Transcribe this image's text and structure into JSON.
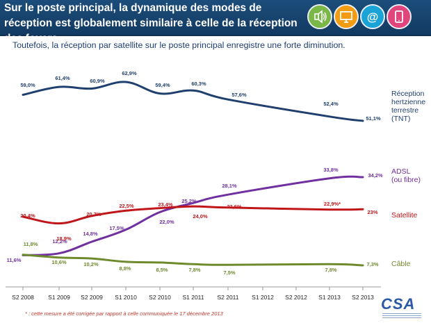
{
  "header": {
    "title": "Sur le poste principal, la dynamique des modes de réception est globalement similaire à celle de la réception des foyers",
    "icons": [
      {
        "name": "speaker-icon",
        "color": "#7ab648"
      },
      {
        "name": "tv-icon",
        "color": "#f39c12"
      },
      {
        "name": "at-icon",
        "color": "#1aa3d6"
      },
      {
        "name": "tablet-icon",
        "color": "#e0457b"
      }
    ]
  },
  "subtitle": "Toutefois, la réception par satellite sur le poste principal enregistre une forte diminution.",
  "footnote": "* : cette mesure a été corrigée par rapport à celle communiquée le 17 décembre 2013",
  "logo": {
    "text": "CSA"
  },
  "chart_data": {
    "type": "line",
    "categories": [
      "S2 2008",
      "S1 2009",
      "S2 2009",
      "S1 2010",
      "S2 2010",
      "S1 2011",
      "S2 2011",
      "S1 2012",
      "S2 2012",
      "S1 2013",
      "S2 2013"
    ],
    "series": [
      {
        "name": "Réception hertzienne terrestre (TNT)",
        "color": "#1f3f6e",
        "values": [
          59.0,
          61.4,
          60.9,
          62.9,
          59.4,
          60.3,
          57.6,
          null,
          null,
          52.4,
          51.1
        ],
        "labels": [
          "59,0%",
          "61,4%",
          "60,9%",
          "62,9%",
          "59,4%",
          "60,3%",
          "57,6%",
          "",
          "",
          "52,4%",
          "51,1%"
        ]
      },
      {
        "name": "ADSL (ou fibre)",
        "color": "#7030a0",
        "values": [
          11.6,
          12.2,
          14.8,
          17.5,
          22.0,
          25.2,
          28.1,
          null,
          null,
          33.8,
          34.2
        ],
        "labels": [
          "11,6%",
          "12,2%",
          "14,8%",
          "17,5%",
          "22,0%",
          "25,2%",
          "28,1%",
          "",
          "",
          "33,8%",
          "34,2%"
        ]
      },
      {
        "name": "Satellite",
        "color": "#c0161a",
        "values": [
          20.4,
          18.9,
          20.7,
          22.5,
          23.4,
          24.0,
          23.6,
          null,
          null,
          22.9,
          23.0
        ],
        "labels": [
          "20,4%",
          "18,9%",
          "20,7%",
          "22,5%",
          "23,4%",
          "24,0%",
          "23,6%",
          "",
          "",
          "22,9%*",
          "23%"
        ]
      },
      {
        "name": "Câble",
        "color": "#6f8a2d",
        "values": [
          11.8,
          10.6,
          10.2,
          8.8,
          8.5,
          7.8,
          7.5,
          null,
          null,
          7.8,
          7.3
        ],
        "labels": [
          "11,8%",
          "10,6%",
          "10,2%",
          "8,8%",
          "8,5%",
          "7,8%",
          "7,5%",
          "",
          "",
          "7,8%",
          "7,3%"
        ]
      }
    ],
    "legend": [
      {
        "lines": [
          "Réception",
          "hertzienne",
          "terrestre",
          "(TNT)"
        ],
        "color": "#1f3f6e"
      },
      {
        "lines": [
          "ADSL",
          "(ou fibre)"
        ],
        "color": "#7030a0"
      },
      {
        "lines": [
          "Satellite"
        ],
        "color": "#c0161a"
      },
      {
        "lines": [
          "Câble"
        ],
        "color": "#6f8a2d"
      }
    ],
    "legend_placement": "right",
    "grid": false
  }
}
